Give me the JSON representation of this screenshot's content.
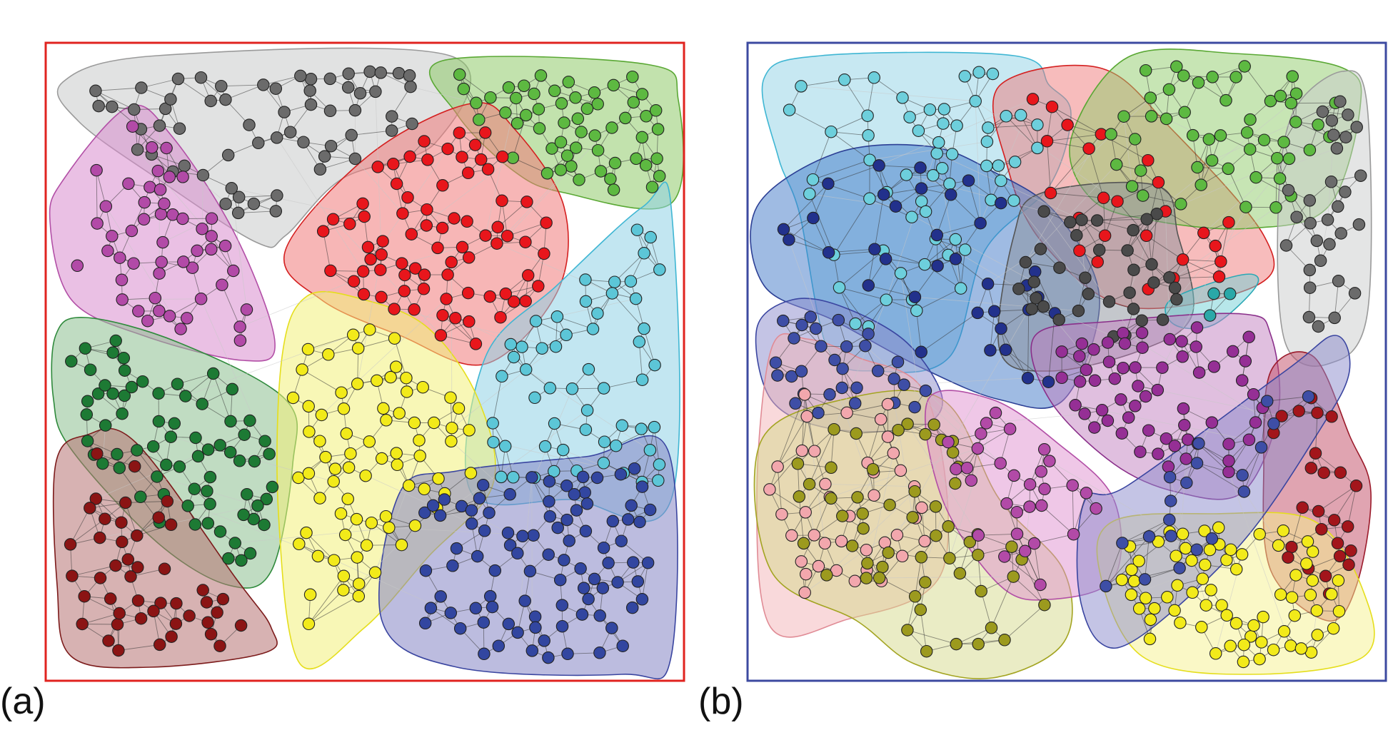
{
  "figure": {
    "panels": [
      {
        "key": "a",
        "label": "(a)",
        "frame_color": "#e0231f",
        "communities": [
          {
            "name": "gray",
            "fill": "#c9cbcb",
            "stroke": "#9a9a9a",
            "node": "#6b6b6b",
            "count": 60
          },
          {
            "name": "green",
            "fill": "#8fcb6a",
            "stroke": "#5aa834",
            "node": "#5db941",
            "count": 55
          },
          {
            "name": "magenta",
            "fill": "#d88ccd",
            "stroke": "#b24fa6",
            "node": "#b24aa7",
            "count": 50
          },
          {
            "name": "red",
            "fill": "#f07a7a",
            "stroke": "#d42020",
            "node": "#e8161c",
            "count": 75
          },
          {
            "name": "darkgreen",
            "fill": "#8dbf8f",
            "stroke": "#2f8a3c",
            "node": "#1d7a34",
            "count": 70
          },
          {
            "name": "cyan",
            "fill": "#8fd2e6",
            "stroke": "#3fb6d3",
            "node": "#5cc6d7",
            "count": 55
          },
          {
            "name": "yellow",
            "fill": "#f3f07a",
            "stroke": "#e5de1c",
            "node": "#f2ea1a",
            "count": 75
          },
          {
            "name": "darkred",
            "fill": "#b77373",
            "stroke": "#7c1b1b",
            "node": "#8b1414",
            "count": 45
          },
          {
            "name": "blue",
            "fill": "#8585c4",
            "stroke": "#3a45a0",
            "node": "#3246a0",
            "count": 90
          }
        ]
      },
      {
        "key": "b",
        "label": "(b)",
        "frame_color": "#3c4aa0",
        "communities": [
          {
            "name": "cyan",
            "fill": "#8fd2e6",
            "stroke": "#3fb6d3",
            "node": "#6dcfdc",
            "count": 60
          },
          {
            "name": "red",
            "fill": "#f07a7a",
            "stroke": "#d42020",
            "node": "#e8161c",
            "count": 25
          },
          {
            "name": "green",
            "fill": "#8fcb6a",
            "stroke": "#5aa834",
            "node": "#5db941",
            "count": 50
          },
          {
            "name": "blue",
            "fill": "#3f78c8",
            "stroke": "#2c3f95",
            "node": "#22318c",
            "count": 35
          },
          {
            "name": "darkgray",
            "fill": "#8a8f9a",
            "stroke": "#555",
            "node": "#4a4a4a",
            "count": 35
          },
          {
            "name": "gray",
            "fill": "#c9cbcb",
            "stroke": "#9a9a9a",
            "node": "#6b6b6b",
            "count": 30
          },
          {
            "name": "teal",
            "fill": "#6fcfd6",
            "stroke": "#2ba8b5",
            "node": "#2aa8a8",
            "count": 3
          },
          {
            "name": "purple",
            "fill": "#c27fc0",
            "stroke": "#8a2f8a",
            "node": "#952f95",
            "count": 60
          },
          {
            "name": "lavender",
            "fill": "#8a8acc",
            "stroke": "#3a45a0",
            "node": "#3e4ea6",
            "count": 30
          },
          {
            "name": "pink",
            "fill": "#f3b3b8",
            "stroke": "#e08b95",
            "node": "#f2a7ad",
            "count": 40
          },
          {
            "name": "olive",
            "fill": "#d6d98c",
            "stroke": "#a3a421",
            "node": "#9c9a1e",
            "count": 55
          },
          {
            "name": "violetpink",
            "fill": "#e08fd0",
            "stroke": "#b24fa6",
            "node": "#b24aa7",
            "count": 30
          },
          {
            "name": "darkred",
            "fill": "#c24a63",
            "stroke": "#9b1b2b",
            "node": "#a3151b",
            "count": 25
          },
          {
            "name": "yellow",
            "fill": "#f5f28e",
            "stroke": "#e5de1c",
            "node": "#f2ea1a",
            "count": 70
          },
          {
            "name": "lowerblue",
            "fill": "#8a8acc",
            "stroke": "#3a45a0",
            "node": "#3e4ea6",
            "count": 20
          }
        ]
      }
    ]
  }
}
